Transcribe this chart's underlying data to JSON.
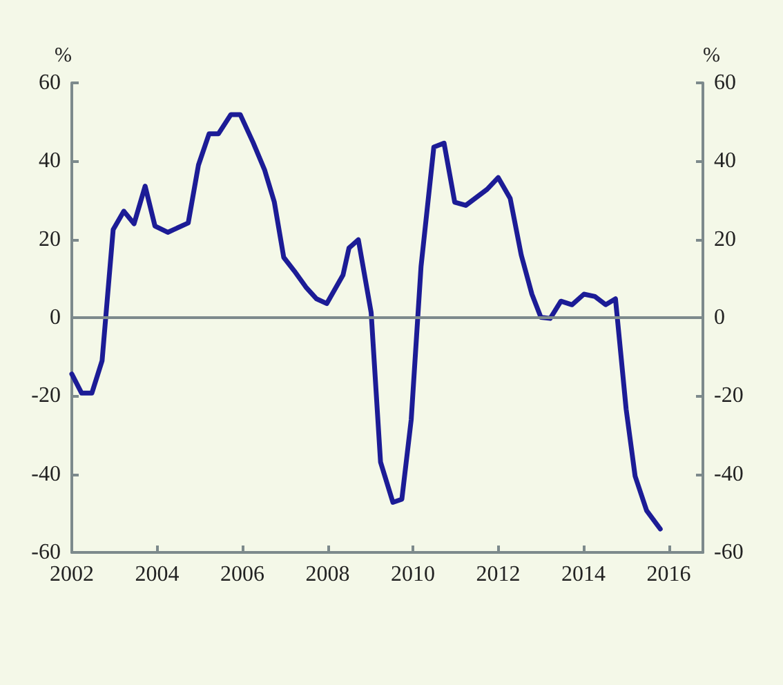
{
  "chart_data": {
    "type": "line",
    "ylabel": "%",
    "y2label": "%",
    "x": [
      2002.0,
      2002.23,
      2002.47,
      2002.71,
      2002.97,
      2003.22,
      2003.46,
      2003.72,
      2003.95,
      2004.25,
      2004.73,
      2004.97,
      2005.22,
      2005.44,
      2005.73,
      2005.95,
      2006.25,
      2006.52,
      2006.75,
      2006.97,
      2007.22,
      2007.49,
      2007.74,
      2007.98,
      2008.36,
      2008.5,
      2008.72,
      2009.02,
      2009.24,
      2009.53,
      2009.74,
      2009.96,
      2010.19,
      2010.49,
      2010.73,
      2010.98,
      2011.24,
      2011.74,
      2012.0,
      2012.28,
      2012.54,
      2012.79,
      2013.0,
      2013.22,
      2013.47,
      2013.73,
      2014.01,
      2014.27,
      2014.52,
      2014.75,
      2015.0,
      2015.21,
      2015.48,
      2015.8
    ],
    "series": [
      {
        "color": "#1c1c96",
        "values": [
          -14.4,
          -19.3,
          -19.3,
          -11,
          22.5,
          27.2,
          24,
          33.6,
          23.4,
          21.8,
          24.2,
          39,
          47,
          47,
          51.9,
          51.9,
          44.8,
          37.8,
          29.5,
          15.4,
          11.9,
          7.8,
          4.8,
          3.6,
          10.9,
          17.8,
          19.9,
          1.3,
          -36.9,
          -47.2,
          -46.4,
          -26,
          13.1,
          43.6,
          44.6,
          29.5,
          28.7,
          32.8,
          35.8,
          30.5,
          16,
          6,
          0.1,
          -0.2,
          4.2,
          3.3,
          6,
          5.4,
          3.3,
          4.8,
          -23.4,
          -40.5,
          -49.3,
          -54
        ]
      }
    ],
    "xlim": [
      2002,
      2016.8
    ],
    "xticks": [
      2002,
      2004,
      2006,
      2008,
      2010,
      2012,
      2014,
      2016
    ],
    "ylim": [
      -60,
      60
    ],
    "yticks": [
      -60,
      -40,
      -20,
      0,
      20,
      40,
      60
    ],
    "y2lim": [
      -60,
      60
    ],
    "y2ticks": [
      -60,
      -40,
      -20,
      0,
      20,
      40,
      60
    ],
    "ref_lines": [
      {
        "axis": "y",
        "value": 0,
        "color": "#7d8a8c"
      }
    ]
  }
}
